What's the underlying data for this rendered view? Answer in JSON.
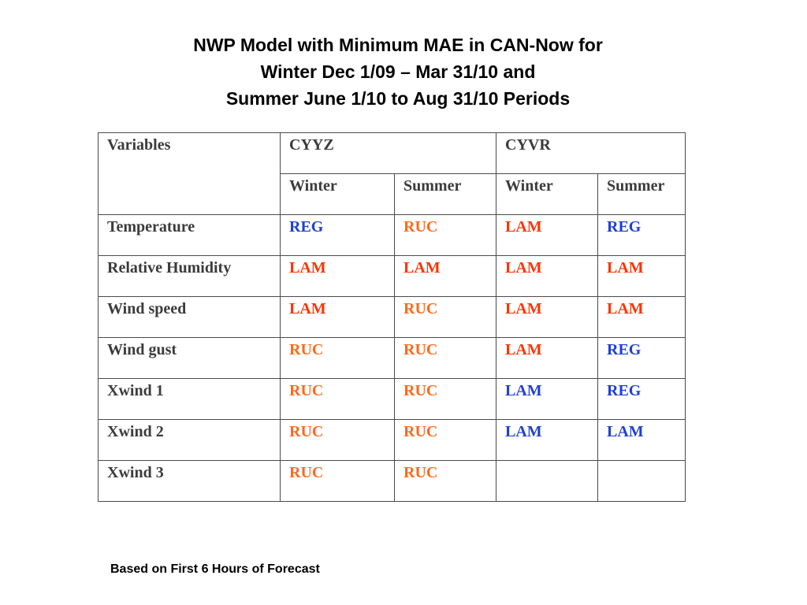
{
  "title": {
    "line1": "NWP Model with Minimum MAE in CAN-Now for",
    "line2": "Winter Dec 1/09 – Mar 31/10 and",
    "line3": "Summer June 1/10 to Aug 31/10 Periods"
  },
  "colors": {
    "red": "#ff3300",
    "orange": "#ff6a1a",
    "blue": "#1f3fd8"
  },
  "table": {
    "header": {
      "variables": "Variables",
      "station1": "CYYZ",
      "station2": "CYVR",
      "season_winter": "Winter",
      "season_summer": "Summer"
    },
    "rows": [
      {
        "variable": "Temperature",
        "cells": [
          {
            "text": "REG",
            "color": "#1f3fd8"
          },
          {
            "text": "RUC",
            "color": "#ff6a1a"
          },
          {
            "text": "LAM",
            "color": "#ff3300"
          },
          {
            "text": "REG",
            "color": "#1f3fd8"
          }
        ]
      },
      {
        "variable": "Relative Humidity",
        "cells": [
          {
            "text": "LAM",
            "color": "#ff3300"
          },
          {
            "text": "LAM",
            "color": "#ff3300"
          },
          {
            "text": "LAM",
            "color": "#ff3300"
          },
          {
            "text": "LAM",
            "color": "#ff3300"
          }
        ]
      },
      {
        "variable": "Wind speed",
        "cells": [
          {
            "text": "LAM",
            "color": "#ff3300"
          },
          {
            "text": "RUC",
            "color": "#ff6a1a"
          },
          {
            "text": "LAM",
            "color": "#ff3300"
          },
          {
            "text": "LAM",
            "color": "#ff3300"
          }
        ]
      },
      {
        "variable": "Wind gust",
        "cells": [
          {
            "text": "RUC",
            "color": "#ff6a1a"
          },
          {
            "text": "RUC",
            "color": "#ff6a1a"
          },
          {
            "text": "LAM",
            "color": "#ff3300"
          },
          {
            "text": "REG",
            "color": "#1f3fd8"
          }
        ]
      },
      {
        "variable": "Xwind 1",
        "cells": [
          {
            "text": "RUC",
            "color": "#ff6a1a"
          },
          {
            "text": "RUC",
            "color": "#ff6a1a"
          },
          {
            "text": "LAM",
            "color": "#1f3fd8"
          },
          {
            "text": "REG",
            "color": "#1f3fd8"
          }
        ]
      },
      {
        "variable": "Xwind 2",
        "cells": [
          {
            "text": "RUC",
            "color": "#ff6a1a"
          },
          {
            "text": "RUC",
            "color": "#ff6a1a"
          },
          {
            "text": "LAM",
            "color": "#1f3fd8"
          },
          {
            "text": "LAM",
            "color": "#1f3fd8"
          }
        ]
      },
      {
        "variable": "Xwind 3",
        "cells": [
          {
            "text": "RUC",
            "color": "#ff6a1a"
          },
          {
            "text": "RUC",
            "color": "#ff6a1a"
          },
          {
            "text": "",
            "color": "#000000"
          },
          {
            "text": "",
            "color": "#000000"
          }
        ]
      }
    ]
  },
  "footnote": "Based on First 6 Hours of Forecast"
}
